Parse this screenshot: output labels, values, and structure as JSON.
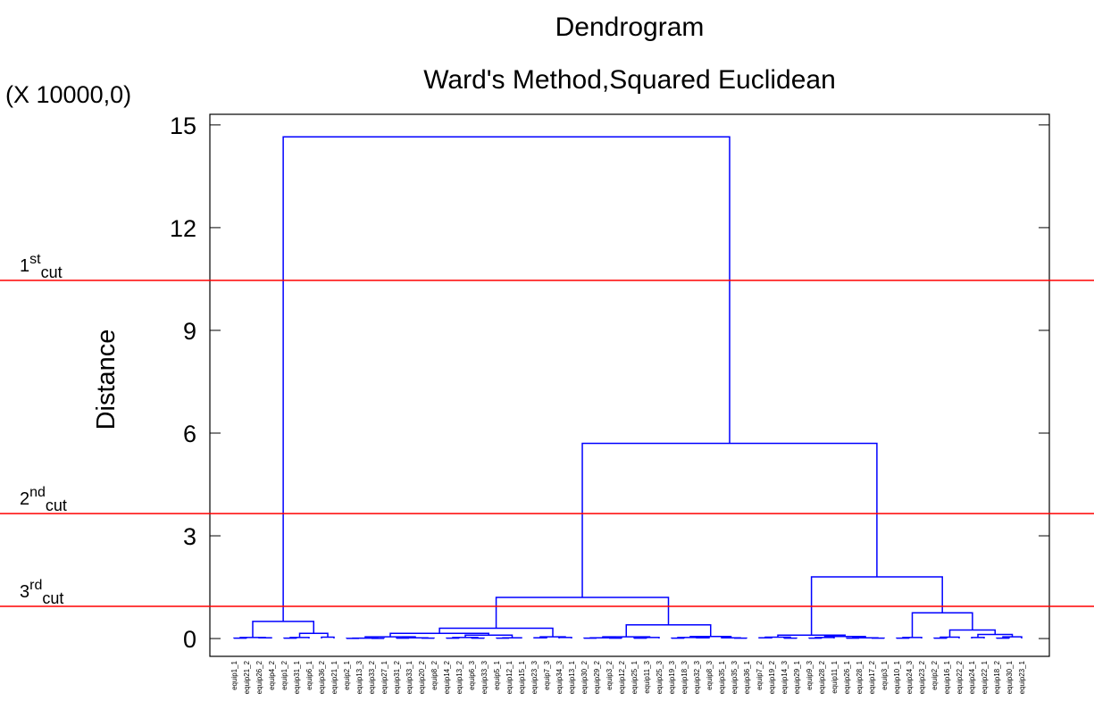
{
  "chart_data": {
    "type": "dendrogram",
    "title": "Dendrogram",
    "subtitle": "Ward's Method,Squared Euclidean",
    "ylabel": "Distance",
    "multiplier": "(X 10000,0)",
    "ylim": [
      -0.52,
      15.31
    ],
    "yticks": [
      0,
      3,
      6,
      9,
      12,
      15
    ],
    "color": "#0000ff",
    "cut_color": "#ff0000",
    "cuts": [
      {
        "value": 10.46,
        "base": "1",
        "sup": "st",
        "sub": "cut"
      },
      {
        "value": 3.65,
        "base": "2",
        "sup": "nd",
        "sub": "cut"
      },
      {
        "value": 0.94,
        "base": "3",
        "sup": "rd",
        "sub": "cut"
      }
    ],
    "leaves": [
      "equip1_1",
      "equip21_2",
      "equip26_2",
      "equip4_2",
      "equip1_2",
      "equip31_1",
      "equip6_1",
      "equip36_2",
      "equip21_1",
      "equip2_1",
      "equip13_3",
      "equip33_2",
      "equip27_1",
      "equip31_2",
      "equip33_1",
      "equip20_2",
      "equip8_2",
      "equip14_2",
      "equip13_2",
      "equip6_3",
      "equip33_3",
      "equip5_1",
      "equip12_1",
      "equip15_1",
      "equip23_3",
      "equip7_3",
      "equip34_3",
      "equip13_1",
      "equip30_2",
      "equip29_2",
      "equip3_2",
      "equip12_2",
      "equip25_1",
      "equip11_3",
      "equip25_3",
      "equip19_3",
      "equip18_3",
      "equip32_3",
      "equip8_3",
      "equip35_1",
      "equip35_3",
      "equip36_1",
      "equip7_2",
      "equip19_2",
      "equip14_3",
      "equip29_1",
      "equip9_3",
      "equip28_2",
      "equip11_1",
      "equip26_1",
      "equip28_1",
      "equip17_2",
      "equip3_1",
      "equip10_1",
      "equip24_3",
      "equip23_2",
      "equip2_2",
      "equip16_1",
      "equip22_2",
      "equip24_1",
      "equip22_1",
      "equip18_2",
      "equip30_1",
      "equip23_1"
    ],
    "tree": [
      14.65,
      [
        0.5,
        [
          0.03,
          [
            0.01,
            0,
            1
          ],
          [
            0.02,
            2,
            3
          ]
        ],
        [
          0.15,
          [
            0.03,
            [
              0.01,
              4,
              5
            ],
            6
          ],
          [
            0.04,
            7,
            8
          ]
        ]
      ],
      [
        5.7,
        [
          1.2,
          [
            0.3,
            [
              0.15,
              [
                0.05,
                [
                  0.01,
                  [
                    0.005,
                    9,
                    10
                  ],
                  [
                    0.005,
                    11,
                    12
                  ]
                ],
                [
                  0.02,
                  [
                    0.01,
                    13,
                    14
                  ],
                  [
                    0.01,
                    15,
                    16
                  ]
                ]
              ],
              [
                0.1,
                [
                  0.03,
                  [
                    0.01,
                    17,
                    18
                  ],
                  [
                    0.01,
                    19,
                    20
                  ]
                ],
                [
                  0.02,
                  [
                    0.01,
                    21,
                    22
                  ],
                  23
                ]
              ]
            ],
            [
              0.05,
              [
                0.02,
                24,
                25
              ],
              [
                0.03,
                26,
                27
              ]
            ]
          ],
          [
            0.4,
            [
              0.05,
              [
                0.02,
                [
                  0.01,
                  28,
                  29
                ],
                [
                  0.01,
                  30,
                  31
                ]
              ],
              [
                0.03,
                [
                  0.01,
                  32,
                  33
                ],
                34
              ]
            ],
            [
              0.06,
              [
                0.03,
                [
                  0.01,
                  35,
                  36
                ],
                [
                  0.02,
                  37,
                  38
                ]
              ],
              [
                0.02,
                39,
                [
                  0.01,
                  40,
                  41
                ]
              ]
            ]
          ]
        ],
        [
          1.8,
          [
            0.1,
            [
              0.04,
              [
                0.02,
                42,
                43
              ],
              [
                0.01,
                44,
                45
              ]
            ],
            [
              0.06,
              [
                0.03,
                [
                  0.01,
                  46,
                  47
                ],
                48
              ],
              [
                0.02,
                [
                  0.01,
                  49,
                  50
                ],
                [
                  0.01,
                  51,
                  52
                ]
              ]
            ]
          ],
          [
            0.75,
            [
              0.03,
              [
                0.01,
                53,
                54
              ],
              55
            ],
            [
              0.25,
              [
                0.04,
                [
                  0.01,
                  56,
                  57
                ],
                58
              ],
              [
                0.12,
                [
                  0.03,
                  59,
                  60
                ],
                [
                  0.05,
                  [
                    0.01,
                    61,
                    62
                  ],
                  63
                ]
              ]
            ]
          ]
        ]
      ]
    ]
  }
}
